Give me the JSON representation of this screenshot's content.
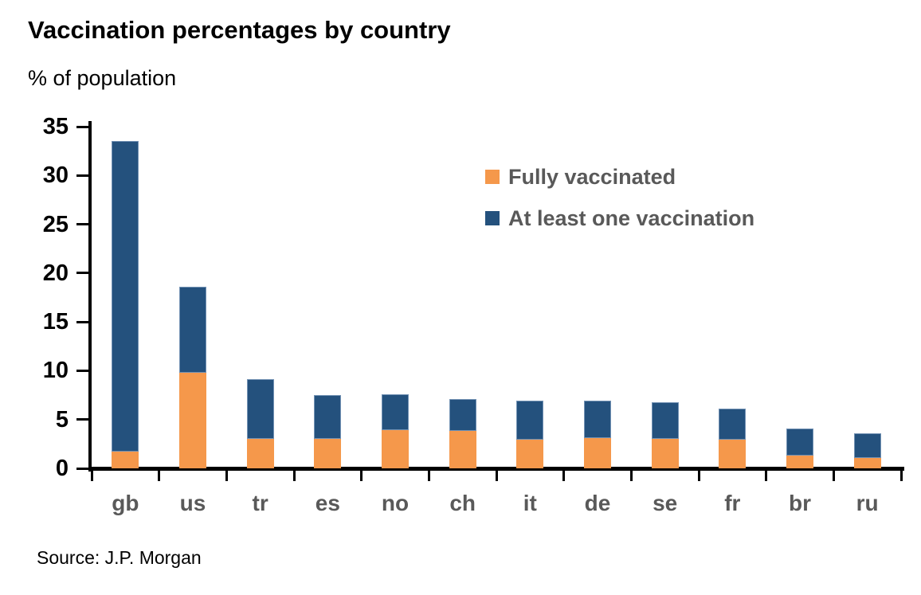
{
  "title": "Vaccination percentages by country",
  "subtitle": "% of population",
  "source": "Source: J.P. Morgan",
  "colors": {
    "fully_vaccinated": "#F5984B",
    "at_least_one": "#24517D",
    "axis": "#000000",
    "category_label": "#595959",
    "legend_text": "#595959"
  },
  "chart_data": {
    "type": "bar",
    "stacked": true,
    "title": "Vaccination percentages by country",
    "ylabel": "% of population",
    "xlabel": "",
    "ylim": [
      0,
      35
    ],
    "yticks": [
      0,
      5,
      10,
      15,
      20,
      25,
      30,
      35
    ],
    "grid": false,
    "legend_position": "upper-right-inside",
    "categories": [
      "gb",
      "us",
      "tr",
      "es",
      "no",
      "ch",
      "it",
      "de",
      "se",
      "fr",
      "br",
      "ru"
    ],
    "series": [
      {
        "name": "Fully vaccinated",
        "color": "#F5984B",
        "values": [
          1.7,
          9.8,
          3.0,
          3.0,
          3.9,
          3.8,
          2.9,
          3.1,
          3.0,
          2.9,
          1.3,
          1.1
        ]
      },
      {
        "name": "At least one vaccination",
        "color": "#24517D",
        "note": "values are totals (top of stacked bar)",
        "values": [
          33.5,
          18.6,
          9.1,
          7.5,
          7.6,
          7.1,
          6.9,
          6.9,
          6.8,
          6.1,
          4.1,
          3.6
        ]
      }
    ]
  }
}
